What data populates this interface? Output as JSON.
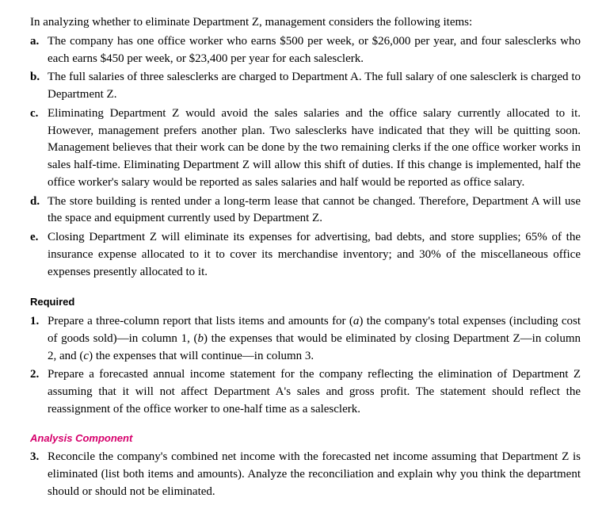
{
  "intro": "In analyzing whether to eliminate Department Z, management considers the following items:",
  "items": [
    {
      "marker": "a.",
      "text": "The company has one office worker who earns $500 per week, or $26,000 per year, and four salesclerks who each earns $450 per week, or $23,400 per year for each salesclerk."
    },
    {
      "marker": "b.",
      "text": "The full salaries of three salesclerks are charged to Department A. The full salary of one salesclerk is charged to Department Z."
    },
    {
      "marker": "c.",
      "text": "Eliminating Department Z would avoid the sales salaries and the office salary currently allocated to it. However, management prefers another plan. Two salesclerks have indicated that they will be quitting soon. Management believes that their work can be done by the two remaining clerks if the one office worker works in sales half-time. Eliminating Department Z will allow this shift of duties. If this change is implemented, half the office worker's salary would be reported as sales salaries and half would be reported as office salary."
    },
    {
      "marker": "d.",
      "text": "The store building is rented under a long-term lease that cannot be changed. Therefore, Department A will use the space and equipment currently used by Department Z."
    },
    {
      "marker": "e.",
      "text": "Closing Department Z will eliminate its expenses for advertising, bad debts, and store supplies; 65% of the insurance expense allocated to it to cover its merchandise inventory; and 30% of the miscellaneous office expenses presently allocated to it."
    }
  ],
  "required_heading": "Required",
  "required_items": [
    {
      "marker": "1.",
      "pre": "Prepare a three-column report that lists items and amounts for (",
      "a": "a",
      "mid1": ") the company's total expenses (including cost of goods sold)—in column 1, (",
      "b": "b",
      "mid2": ") the expenses that would be eliminated by closing Department Z—in column 2, and (",
      "c": "c",
      "post": ") the expenses that will continue—in column 3."
    },
    {
      "marker": "2.",
      "text": "Prepare a forecasted annual income statement for the company reflecting the elimination of Department Z assuming that it will not affect Department A's sales and gross profit. The statement should reflect the reassignment of the office worker to one-half time as a salesclerk."
    }
  ],
  "analysis_heading": "Analysis Component",
  "analysis_items": [
    {
      "marker": "3.",
      "text": "Reconcile the company's combined net income with the forecasted net income assuming that Department Z is eliminated (list both items and amounts). Analyze the reconciliation and explain why you think the department should or should not be eliminated."
    }
  ],
  "colors": {
    "text": "#000000",
    "background": "#ffffff",
    "analysis_heading": "#d6006c"
  }
}
